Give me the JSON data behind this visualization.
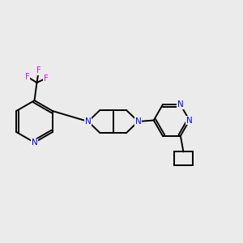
{
  "background_color": "#ebebeb",
  "bond_color": "#000000",
  "n_color": "#0000ee",
  "f_color": "#ee00ee",
  "line_width": 1.4,
  "figsize": [
    3.0,
    3.0
  ],
  "dpi": 100,
  "xlim": [
    0.0,
    1.0
  ],
  "ylim": [
    0.1,
    0.9
  ]
}
